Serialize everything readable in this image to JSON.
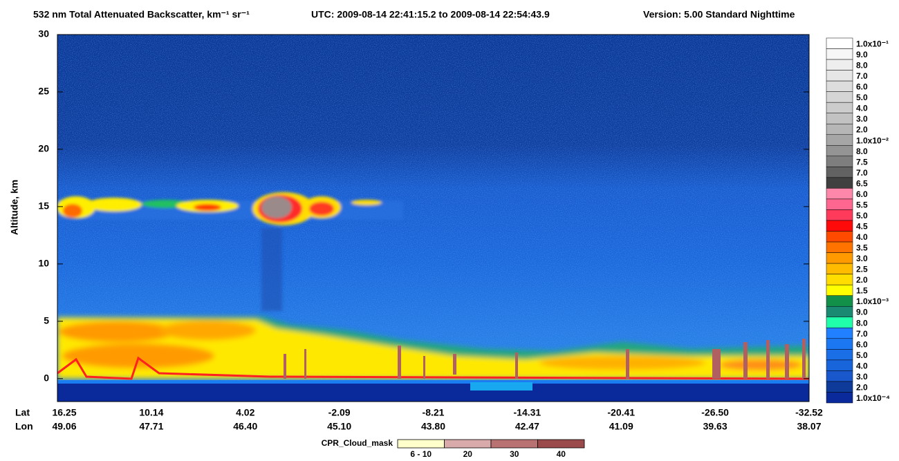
{
  "chart_data": {
    "type": "curtain",
    "title": "532 nm Total Attenuated Backscatter, km⁻¹ sr⁻¹",
    "utc": "UTC:  2009-08-14 22:41:15.2  to  2009-08-14 22:54:43.9",
    "version": "Version: 5.00  Standard  Nighttime",
    "ylabel": "Altitude, km",
    "ylim": [
      -2,
      30
    ],
    "yticks": [
      0,
      5,
      10,
      15,
      20,
      25,
      30
    ],
    "x_rows": [
      {
        "name": "Lat",
        "labels": [
          "16.25",
          "10.14",
          "4.02",
          "-2.09",
          "-8.21",
          "-14.31",
          "-20.41",
          "-26.50",
          "-32.52"
        ]
      },
      {
        "name": "Lon",
        "labels": [
          "49.06",
          "47.71",
          "46.40",
          "45.10",
          "43.80",
          "42.47",
          "41.09",
          "39.63",
          "38.07"
        ]
      }
    ],
    "colorbar": {
      "labels": [
        "1.0x10⁻¹",
        "9.0",
        "8.0",
        "7.0",
        "6.0",
        "5.0",
        "4.0",
        "3.0",
        "2.0",
        "1.0x10⁻²",
        "8.0",
        "7.5",
        "7.0",
        "6.5",
        "6.0",
        "5.5",
        "5.0",
        "4.5",
        "4.0",
        "3.5",
        "3.0",
        "2.5",
        "2.0",
        "1.5",
        "1.0x10⁻³",
        "9.0",
        "8.0",
        "7.0",
        "6.0",
        "5.0",
        "4.0",
        "3.0",
        "2.0",
        "1.0x10⁻⁴"
      ],
      "colors": [
        "#ffffff",
        "#f6f6f6",
        "#eeeeee",
        "#e6e6e6",
        "#dddddd",
        "#d5d5d5",
        "#cccccc",
        "#c2c2c2",
        "#b6b6b6",
        "#a6a6a6",
        "#949494",
        "#7e7e7e",
        "#626262",
        "#404040",
        "#ff88aa",
        "#ff6690",
        "#ff3a5a",
        "#ff0a0a",
        "#ff4a00",
        "#ff7400",
        "#ff9a00",
        "#ffbb00",
        "#ffdd00",
        "#ffff00",
        "#12904a",
        "#1a8a72",
        "#20ffaa",
        "#2080ff",
        "#1c78f2",
        "#1a6ee6",
        "#1864da",
        "#1858cc",
        "#0e3a9a",
        "#0a2a9c"
      ]
    },
    "cloud_mask": {
      "label": "CPR_Cloud_mask",
      "labels": [
        "6 - 10",
        "20",
        "30",
        "40"
      ],
      "colors": [
        "#ffffcc",
        "#d8aaaa",
        "#b87272",
        "#9a4a4a"
      ]
    }
  }
}
